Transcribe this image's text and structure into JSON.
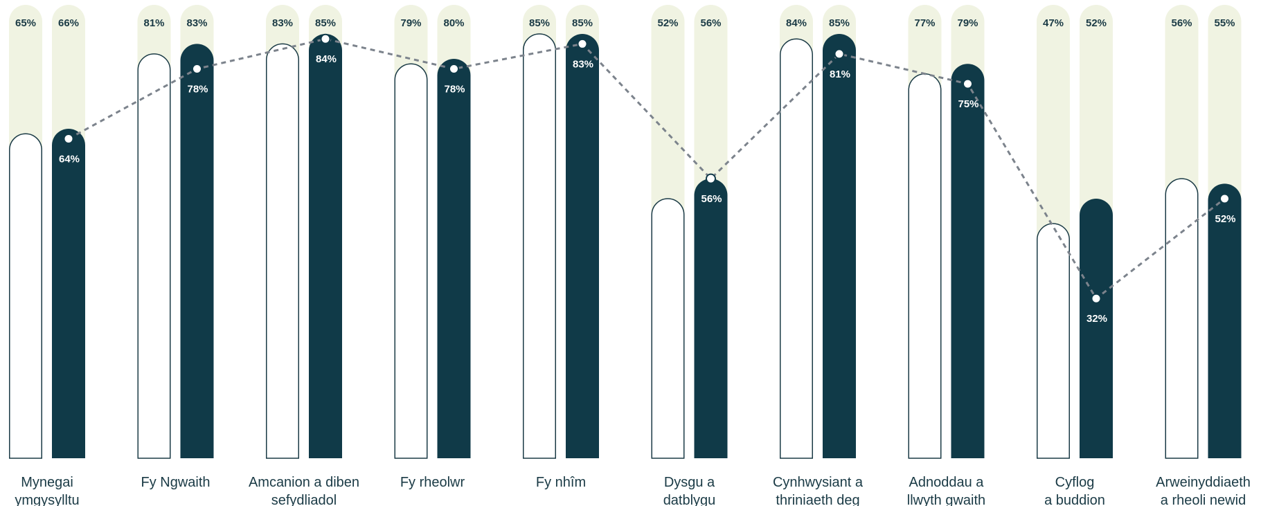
{
  "chart_data": {
    "type": "bar",
    "categories": [
      [
        "Mynegai",
        "ymgysylltu"
      ],
      [
        "Fy Ngwaith"
      ],
      [
        "Amcanion a diben",
        "sefydliadol"
      ],
      [
        "Fy rheolwr"
      ],
      [
        "Fy nhîm"
      ],
      [
        "Dysgu a",
        "datblygu"
      ],
      [
        "Cynhwysiant a",
        "thriniaeth deg"
      ],
      [
        "Adnoddau a",
        "llwyth gwaith"
      ],
      [
        "Cyflog",
        "a buddion"
      ],
      [
        "Arweinyddiaeth",
        "a rheoli newid"
      ]
    ],
    "series": [
      {
        "values": [
          65,
          81,
          83,
          79,
          85,
          52,
          84,
          77,
          47,
          56
        ],
        "labels": [
          "65%",
          "81%",
          "83%",
          "79%",
          "85%",
          "52%",
          "84%",
          "77%",
          "47%",
          "56%"
        ]
      },
      {
        "values": [
          66,
          83,
          85,
          80,
          85,
          56,
          85,
          79,
          52,
          55
        ],
        "labels": [
          "66%",
          "83%",
          "85%",
          "80%",
          "85%",
          "56%",
          "85%",
          "79%",
          "52%",
          "55%"
        ]
      }
    ],
    "line_series": {
      "values": [
        64,
        78,
        84,
        78,
        83,
        56,
        81,
        75,
        32,
        52
      ],
      "labels": [
        "64%",
        "78%",
        "84%",
        "78%",
        "83%",
        "56%",
        "81%",
        "75%",
        "32%",
        "52%"
      ]
    },
    "ylim": [
      0,
      100
    ],
    "grid": false,
    "legend": "none",
    "colors": {
      "background_bar": "#f0f3e2",
      "outline_bar_stroke": "#1a3a45",
      "filled_bar": "#103a48",
      "line": "#7c838c",
      "marker": "#ffffff",
      "text_dark": "#1a3a45",
      "text_light": "#ffffff"
    }
  }
}
